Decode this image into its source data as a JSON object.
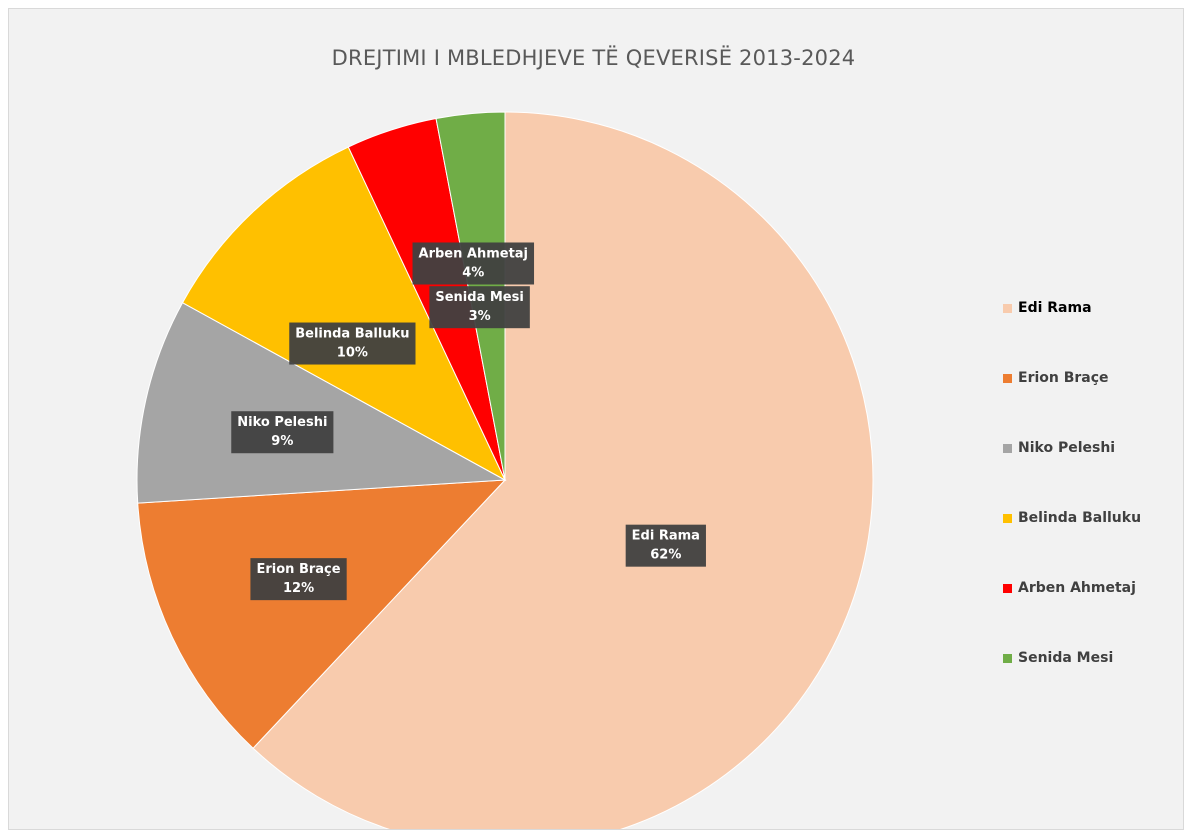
{
  "chart_data": {
    "type": "pie",
    "title": "DREJTIMI I MBLEDHJEVE TË QEVERISË 2013-2024",
    "legend_position": "right",
    "slices": [
      {
        "name": "Edi Rama",
        "value": 62,
        "label": "62%",
        "color": "#f8cbad"
      },
      {
        "name": "Erion Braçe",
        "value": 12,
        "label": "12%",
        "color": "#ed7d31"
      },
      {
        "name": "Niko Peleshi",
        "value": 9,
        "label": "9%",
        "color": "#a5a5a5"
      },
      {
        "name": "Belinda Balluku",
        "value": 10,
        "label": "10%",
        "color": "#ffc000"
      },
      {
        "name": "Arben Ahmetaj",
        "value": 4,
        "label": "4%",
        "color": "#ff0000"
      },
      {
        "name": "Senida Mesi",
        "value": 3,
        "label": "3%",
        "color": "#70ad47"
      }
    ],
    "legend": [
      "Edi Rama",
      "Erion Braçe",
      "Niko Peleshi",
      "Belinda Balluku",
      "Arben Ahmetaj",
      "Senida Mesi"
    ]
  }
}
